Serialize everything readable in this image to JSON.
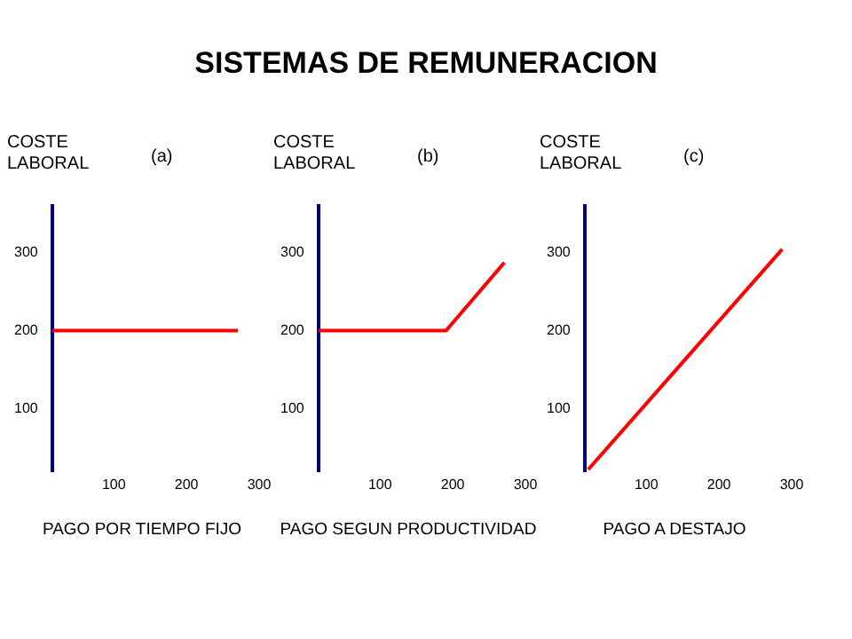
{
  "chart_data": [
    {
      "type": "line",
      "title": "SISTEMAS DE REMUNERACION",
      "subtitle": "(a)",
      "ylabel": "COSTE LABORAL",
      "xlabel": "PAGO POR TIEMPO FIJO",
      "x": [
        15,
        271
      ],
      "values": [
        200,
        200
      ],
      "color": "#ff0000",
      "xlim": [
        15,
        300
      ],
      "ylim": [
        20,
        360
      ],
      "xticks": [
        100,
        200,
        300
      ],
      "yticks": [
        100,
        200,
        300
      ],
      "grid": false,
      "legend": false,
      "marker": "none"
    },
    {
      "type": "line",
      "subtitle": "(b)",
      "ylabel": "COSTE LABORAL",
      "xlabel": "PAGO SEGUN PRODUCTIVIDAD",
      "x": [
        15,
        191,
        271
      ],
      "values": [
        200,
        200,
        287
      ],
      "color": "#ff0000",
      "xlim": [
        15,
        300
      ],
      "ylim": [
        20,
        360
      ],
      "xticks": [
        100,
        200,
        300
      ],
      "yticks": [
        100,
        200,
        300
      ],
      "grid": false,
      "legend": false,
      "marker": "none"
    },
    {
      "type": "line",
      "subtitle": "(c)",
      "ylabel": "COSTE LABORAL",
      "xlabel": "PAGO A DESTAJO",
      "x": [
        20,
        287
      ],
      "values": [
        22,
        304
      ],
      "color": "#ff0000",
      "xlim": [
        15,
        300
      ],
      "ylim": [
        20,
        360
      ],
      "xticks": [
        100,
        200,
        300
      ],
      "yticks": [
        100,
        200,
        300
      ],
      "grid": false,
      "legend": false,
      "marker": "none"
    }
  ]
}
